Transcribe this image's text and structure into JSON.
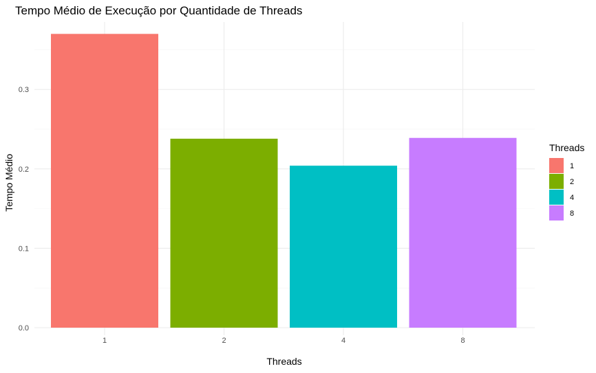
{
  "chart_data": {
    "type": "bar",
    "title": "Tempo Médio de Execução por Quantidade de Threads",
    "xlabel": "Threads",
    "ylabel": "Tempo Médio",
    "categories": [
      "1",
      "2",
      "4",
      "8"
    ],
    "values": [
      0.37,
      0.238,
      0.204,
      0.239
    ],
    "colors": [
      "#F8766D",
      "#7CAE00",
      "#00BFC4",
      "#C77CFF"
    ],
    "ylim": [
      0,
      0.385
    ],
    "yticks": [
      0.0,
      0.1,
      0.2,
      0.3
    ],
    "ytick_labels": [
      "0.0",
      "0.1",
      "0.2",
      "0.3"
    ],
    "grid": true,
    "legend": {
      "title": "Threads",
      "position": "right",
      "entries": [
        "1",
        "2",
        "4",
        "8"
      ]
    }
  }
}
